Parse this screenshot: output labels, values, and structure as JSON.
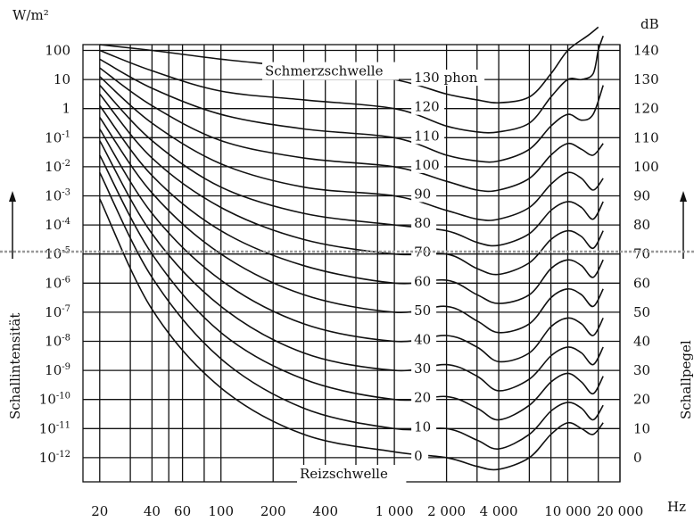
{
  "chart_data": {
    "type": "line",
    "title": "",
    "left_axis_unit": "W/m²",
    "right_axis_unit": "dB",
    "ylabel_left": "Schallintensität",
    "ylabel_right": "Schallpegel",
    "x_unit": "Hz",
    "x_scale": "log",
    "grid": true,
    "xlim": [
      16,
      20000
    ],
    "ylim_db": [
      -6,
      140
    ],
    "x_ticks": [
      {
        "v": 20,
        "label": "20"
      },
      {
        "v": 40,
        "label": "40"
      },
      {
        "v": 60,
        "label": "60"
      },
      {
        "v": 100,
        "label": "100"
      },
      {
        "v": 200,
        "label": "200"
      },
      {
        "v": 400,
        "label": "400"
      },
      {
        "v": 1000,
        "label": "1 000"
      },
      {
        "v": 2000,
        "label": "2 000"
      },
      {
        "v": 4000,
        "label": "4 000"
      },
      {
        "v": 10000,
        "label": "10 000"
      },
      {
        "v": 20000,
        "label": "20 000"
      }
    ],
    "x_gridlines": [
      20,
      30,
      40,
      50,
      60,
      80,
      100,
      200,
      300,
      400,
      600,
      800,
      1000,
      2000,
      3000,
      4000,
      6000,
      8000,
      10000,
      15000,
      20000
    ],
    "left_ticks": [
      {
        "db": 140,
        "base": "100",
        "exp": ""
      },
      {
        "db": 130,
        "base": "10",
        "exp": ""
      },
      {
        "db": 120,
        "base": "1",
        "exp": ""
      },
      {
        "db": 110,
        "base": "10",
        "exp": "-1"
      },
      {
        "db": 100,
        "base": "10",
        "exp": "-2"
      },
      {
        "db": 90,
        "base": "10",
        "exp": "-3"
      },
      {
        "db": 80,
        "base": "10",
        "exp": "-4"
      },
      {
        "db": 70,
        "base": "10",
        "exp": "-5"
      },
      {
        "db": 60,
        "base": "10",
        "exp": "-6"
      },
      {
        "db": 50,
        "base": "10",
        "exp": "-7"
      },
      {
        "db": 40,
        "base": "10",
        "exp": "-8"
      },
      {
        "db": 30,
        "base": "10",
        "exp": "-9"
      },
      {
        "db": 20,
        "base": "10",
        "exp": "-10"
      },
      {
        "db": 10,
        "base": "10",
        "exp": "-11"
      },
      {
        "db": 0,
        "base": "10",
        "exp": "-12"
      }
    ],
    "right_ticks": [
      "140",
      "130",
      "120",
      "110",
      "100",
      "90",
      "80",
      "70",
      "60",
      "50",
      "40",
      "30",
      "20",
      "10",
      "0"
    ],
    "series": [
      {
        "name": "130 phon",
        "x": [
          20,
          40,
          100,
          300,
          1000,
          2000,
          3000,
          4000,
          6000,
          8000,
          10000,
          13000,
          15000
        ],
        "y": [
          142,
          140,
          137,
          134,
          130,
          125,
          123,
          122,
          124,
          132,
          140,
          145,
          148
        ]
      },
      {
        "name": "120",
        "x": [
          20,
          40,
          100,
          300,
          1000,
          2000,
          3000,
          4000,
          6000,
          8000,
          10000,
          12000,
          14000,
          15000,
          16000
        ],
        "y": [
          140,
          133,
          126,
          123,
          120,
          114,
          112,
          112,
          115,
          124,
          130,
          130,
          132,
          140,
          145
        ]
      },
      {
        "name": "110",
        "x": [
          20,
          40,
          100,
          300,
          1000,
          2000,
          3000,
          4000,
          6000,
          8000,
          10000,
          12000,
          14000,
          16000
        ],
        "y": [
          137,
          127,
          118,
          113,
          110,
          104,
          102,
          102,
          106,
          114,
          118,
          116,
          118,
          128
        ]
      },
      {
        "name": "100",
        "x": [
          20,
          40,
          100,
          300,
          1000,
          2000,
          3000,
          4000,
          6000,
          8000,
          10000,
          12000,
          14000,
          16000
        ],
        "y": [
          134,
          121,
          109,
          103,
          100,
          95,
          92,
          92,
          96,
          104,
          108,
          106,
          104,
          108
        ]
      },
      {
        "name": "90",
        "x": [
          20,
          40,
          100,
          300,
          1000,
          2000,
          3000,
          4000,
          6000,
          8000,
          10000,
          12000,
          14000,
          16000
        ],
        "y": [
          131,
          115,
          101,
          93,
          90,
          85,
          82,
          82,
          86,
          94,
          98,
          96,
          92,
          96
        ]
      },
      {
        "name": "80",
        "x": [
          20,
          40,
          100,
          300,
          1000,
          2000,
          3000,
          4000,
          6000,
          8000,
          10000,
          12000,
          14000,
          16000
        ],
        "y": [
          128,
          109,
          93,
          84,
          80,
          78,
          74,
          73,
          77,
          85,
          88,
          86,
          82,
          88
        ]
      },
      {
        "name": "70",
        "x": [
          20,
          40,
          100,
          300,
          1000,
          2000,
          3000,
          4000,
          6000,
          8000,
          10000,
          12000,
          14000,
          16000
        ],
        "y": [
          125,
          103,
          86,
          75,
          70,
          70,
          65,
          63,
          67,
          75,
          78,
          76,
          72,
          78
        ]
      },
      {
        "name": "60",
        "x": [
          20,
          40,
          100,
          300,
          1000,
          2000,
          3000,
          4000,
          6000,
          8000,
          10000,
          12000,
          14000,
          16000
        ],
        "y": [
          121,
          97,
          78,
          66,
          60,
          61,
          56,
          53,
          56,
          65,
          68,
          66,
          62,
          68
        ]
      },
      {
        "name": "50",
        "x": [
          20,
          40,
          100,
          300,
          1000,
          2000,
          3000,
          4000,
          6000,
          8000,
          10000,
          12000,
          14000,
          16000
        ],
        "y": [
          117,
          91,
          70,
          56,
          50,
          52,
          47,
          43,
          46,
          55,
          58,
          56,
          52,
          58
        ]
      },
      {
        "name": "40",
        "x": [
          20,
          40,
          100,
          300,
          1000,
          2000,
          3000,
          4000,
          6000,
          8000,
          10000,
          12000,
          14000,
          16000
        ],
        "y": [
          113,
          84,
          61,
          46,
          40,
          42,
          38,
          33,
          36,
          45,
          48,
          46,
          42,
          48
        ]
      },
      {
        "name": "30",
        "x": [
          20,
          40,
          100,
          300,
          1000,
          2000,
          3000,
          4000,
          6000,
          8000,
          10000,
          12000,
          14000,
          16000
        ],
        "y": [
          109,
          77,
          52,
          36,
          30,
          32,
          28,
          23,
          27,
          35,
          38,
          36,
          32,
          38
        ]
      },
      {
        "name": "20",
        "x": [
          20,
          40,
          100,
          300,
          1000,
          2000,
          3000,
          4000,
          6000,
          8000,
          10000,
          12000,
          14000,
          16000
        ],
        "y": [
          104,
          70,
          43,
          27,
          20,
          21,
          17,
          13,
          18,
          26,
          29,
          26,
          22,
          28
        ]
      },
      {
        "name": "10",
        "x": [
          20,
          40,
          100,
          300,
          1000,
          2000,
          3000,
          4000,
          6000,
          8000,
          10000,
          12000,
          14000,
          16000
        ],
        "y": [
          98,
          62,
          34,
          17,
          10,
          10,
          6,
          3,
          8,
          16,
          19,
          17,
          13,
          18
        ]
      },
      {
        "name": "0",
        "x": [
          20,
          40,
          100,
          300,
          1000,
          2000,
          3000,
          4000,
          6000,
          8000,
          10000,
          12000,
          14000,
          16000
        ],
        "y": [
          89,
          51,
          24,
          8,
          2,
          0,
          -3,
          -4,
          0,
          8,
          12,
          10,
          8,
          12
        ]
      }
    ],
    "annotations": [
      {
        "id": "pain",
        "text": "Schmerzschwelle",
        "x": 480,
        "y": 132
      },
      {
        "id": "threshold",
        "text": "Reizschwelle",
        "x": 900,
        "y": -5
      }
    ]
  }
}
